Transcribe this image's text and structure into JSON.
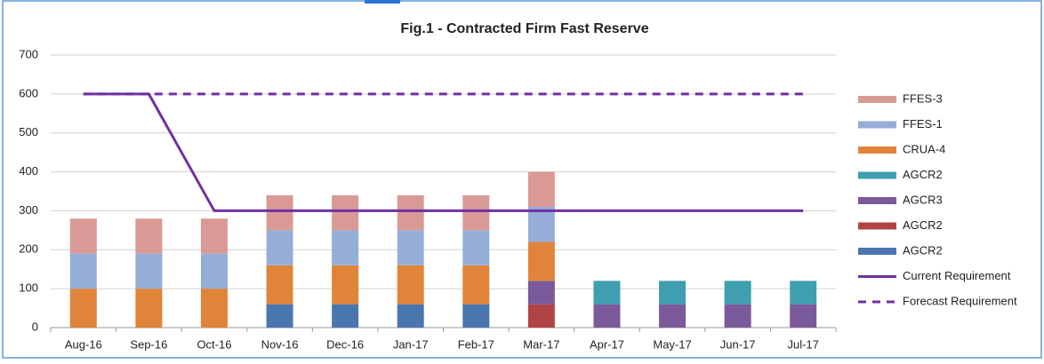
{
  "chart_data": {
    "type": "bar",
    "stacked": true,
    "title": "Fig.1 - Contracted Firm Fast Reserve",
    "categories": [
      "Aug-16",
      "Sep-16",
      "Oct-16",
      "Nov-16",
      "Dec-16",
      "Jan-17",
      "Feb-17",
      "Mar-17",
      "Apr-17",
      "May-17",
      "Jun-17",
      "Jul-17"
    ],
    "series": [
      {
        "name": "AGCR2",
        "type": "bar",
        "color": "#4a76b0",
        "values": [
          null,
          null,
          null,
          60,
          60,
          60,
          60,
          null,
          null,
          null,
          null,
          null
        ]
      },
      {
        "name": "AGCR2",
        "type": "bar",
        "color": "#b04444",
        "values": [
          null,
          null,
          null,
          null,
          null,
          null,
          null,
          60,
          null,
          null,
          null,
          null
        ]
      },
      {
        "name": "AGCR3",
        "type": "bar",
        "color": "#7a5a9a",
        "values": [
          null,
          null,
          null,
          null,
          null,
          null,
          null,
          60,
          60,
          60,
          60,
          60
        ]
      },
      {
        "name": "AGCR2",
        "type": "bar",
        "color": "#3f9fb0",
        "values": [
          null,
          null,
          null,
          null,
          null,
          null,
          null,
          null,
          60,
          60,
          60,
          60
        ]
      },
      {
        "name": "CRUA-4",
        "type": "bar",
        "color": "#e0843a",
        "values": [
          100,
          100,
          100,
          100,
          100,
          100,
          100,
          100,
          null,
          null,
          null,
          null
        ]
      },
      {
        "name": "FFES-1",
        "type": "bar",
        "color": "#95aed8",
        "values": [
          90,
          90,
          90,
          90,
          90,
          90,
          90,
          90,
          null,
          null,
          null,
          null
        ]
      },
      {
        "name": "FFES-3",
        "type": "bar",
        "color": "#d99a96",
        "values": [
          90,
          90,
          90,
          90,
          90,
          90,
          90,
          90,
          null,
          null,
          null,
          null
        ]
      },
      {
        "name": "Current Requirement",
        "type": "line",
        "style": "solid",
        "color": "#7030a0",
        "values": [
          600,
          600,
          300,
          300,
          300,
          300,
          300,
          300,
          300,
          300,
          300,
          300
        ]
      },
      {
        "name": "Forecast Requirement",
        "type": "line",
        "style": "dashed",
        "color": "#7030a0",
        "values": [
          600,
          600,
          600,
          600,
          600,
          600,
          600,
          600,
          600,
          600,
          600,
          600
        ]
      }
    ],
    "ylim": [
      0,
      700
    ],
    "yticks": [
      0,
      100,
      200,
      300,
      400,
      500,
      600,
      700
    ],
    "grid": true,
    "legend": "right"
  }
}
